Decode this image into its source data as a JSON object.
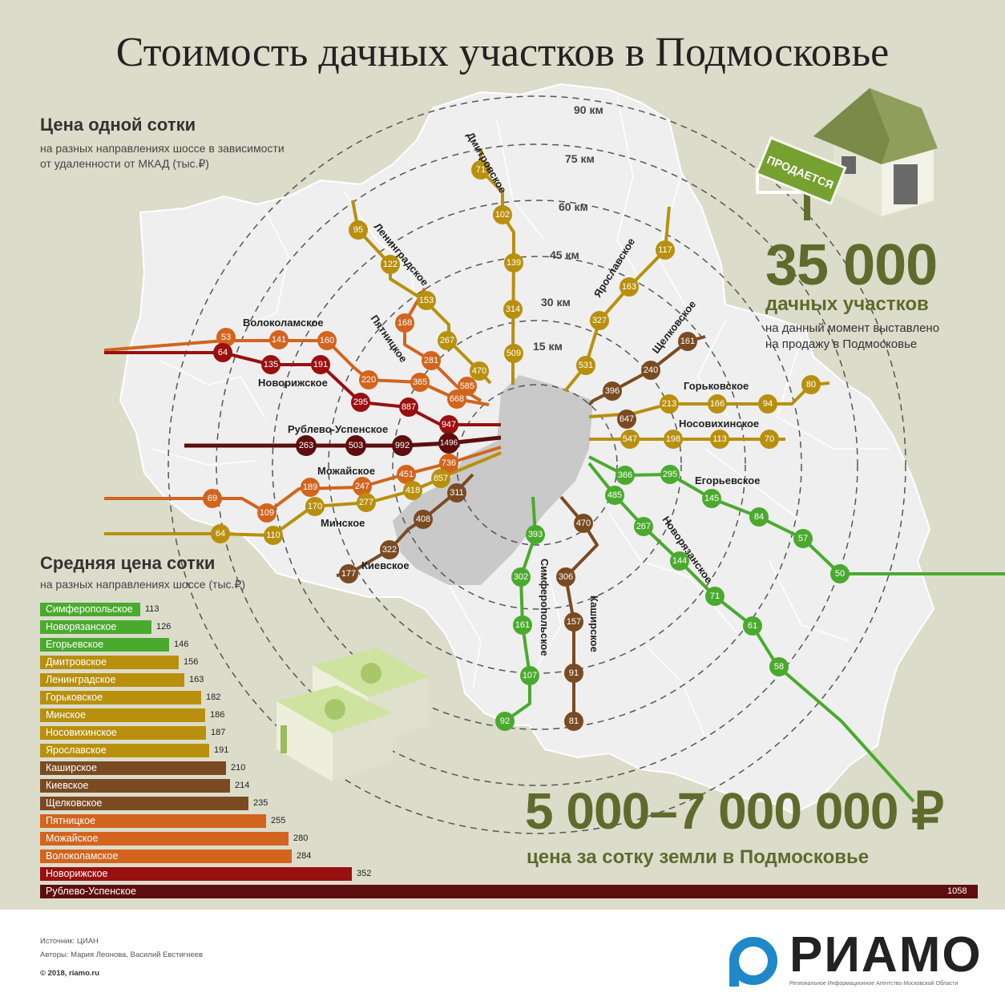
{
  "title": "Стоимость дачных участков в Подмосковье",
  "section1": {
    "heading": "Цена одной сотки",
    "subtitle_1": "на разных направлениях шоссе в зависимости",
    "subtitle_2": "от удаленности от МКАД (тыс.₽)"
  },
  "rings": [
    "15 км",
    "30 км",
    "45 км",
    "60 км",
    "75 км",
    "90 км"
  ],
  "sign_text": "ПРОДАЕТСЯ",
  "stat1": {
    "number": "35 000",
    "label": "дачных участков",
    "desc_1": "на данный момент выставлено",
    "desc_2": "на продажу в Подмосковье"
  },
  "stat2": {
    "number": "5 000–7 000 000 ₽",
    "label": "цена за сотку земли в Подмосковье"
  },
  "section2": {
    "heading": "Средняя цена сотки",
    "subtitle": "на разных направлениях шоссе (тыс.₽)"
  },
  "map_labels": {
    "dmitrovskoe": "Дмитровское",
    "leningradskoe": "Ленинградское",
    "yaroslavskoe": "Ярославское",
    "shchelkovskoe": "Щелковское",
    "volokolamskoe": "Волоколамское",
    "pyatnitskoe": "Пятницкое",
    "novorizhskoe": "Новорижское",
    "gorkovskoe": "Горьковское",
    "nosovikhinskoe": "Носовихинское",
    "rublevo": "Рублево-Успенское",
    "mozhayskoe": "Можайское",
    "egoryevskoe": "Егорьевское",
    "minskoe": "Минское",
    "novoryazanskoe": "Новорязанское",
    "kievskoe": "Киевское",
    "simferopolskoe": "Симферопольское",
    "kashirskoe": "Каширское"
  },
  "highways": [
    {
      "name": "Дмитровское",
      "color": "#b8900e",
      "values": [
        "71",
        "102",
        "139",
        "314",
        "509"
      ]
    },
    {
      "name": "Ленинградское",
      "color": "#b8900e",
      "values": [
        "95",
        "122",
        "153",
        "267",
        "470"
      ]
    },
    {
      "name": "Ярославское",
      "color": "#b8900e",
      "values": [
        "117",
        "163",
        "327",
        "531"
      ]
    },
    {
      "name": "Пятницкое",
      "color": "#d2641e",
      "values": [
        "168",
        "281",
        "585"
      ]
    },
    {
      "name": "Щелковское",
      "color": "#7a4b23",
      "values": [
        "161",
        "240",
        "396",
        "647"
      ]
    },
    {
      "name": "Волоколамское",
      "color": "#d2641e",
      "values": [
        "53",
        "141",
        "160",
        "220",
        "365",
        "668"
      ]
    },
    {
      "name": "Новорижское",
      "color": "#9a0f0f",
      "values": [
        "64",
        "135",
        "191",
        "295",
        "887",
        "947"
      ]
    },
    {
      "name": "Горьковское",
      "color": "#b8900e",
      "values": [
        "80",
        "94",
        "166",
        "213"
      ]
    },
    {
      "name": "Носовихинское",
      "color": "#b8900e",
      "values": [
        "70",
        "113",
        "198",
        "547"
      ]
    },
    {
      "name": "Рублево-Успенское",
      "color": "#5e0e0e",
      "values": [
        "263",
        "503",
        "992",
        "1496"
      ]
    },
    {
      "name": "Можайское",
      "color": "#d2641e",
      "values": [
        "69",
        "109",
        "189",
        "247",
        "451",
        "736"
      ]
    },
    {
      "name": "Минское",
      "color": "#b8900e",
      "values": [
        "64",
        "110",
        "170",
        "277",
        "418",
        "857"
      ]
    },
    {
      "name": "Киевское",
      "color": "#7a4b23",
      "values": [
        "177",
        "322",
        "408",
        "311"
      ]
    },
    {
      "name": "Егорьевское",
      "color": "#4aaa2e",
      "values": [
        "366",
        "295",
        "145",
        "84",
        "57",
        "50"
      ]
    },
    {
      "name": "Новорязанское",
      "color": "#4aaa2e",
      "values": [
        "485",
        "267",
        "144",
        "71",
        "61",
        "58"
      ]
    },
    {
      "name": "Симферопольское",
      "color": "#4aaa2e",
      "values": [
        "393",
        "302",
        "161",
        "107",
        "92"
      ]
    },
    {
      "name": "Каширское",
      "color": "#7a4b23",
      "values": [
        "470",
        "306",
        "157",
        "91",
        "81"
      ]
    }
  ],
  "chart_data": {
    "type": "bar",
    "categories": [
      "Симферопольское",
      "Новорязанское",
      "Егорьевское",
      "Дмитровское",
      "Ленинградское",
      "Горьковское",
      "Минское",
      "Носовихинское",
      "Ярославское",
      "Каширское",
      "Киевское",
      "Щелковское",
      "Пятницкое",
      "Можайское",
      "Волоколамское",
      "Новорижское",
      "Рублево-Успенское"
    ],
    "values": [
      113,
      126,
      146,
      156,
      163,
      182,
      186,
      187,
      191,
      210,
      214,
      235,
      255,
      280,
      284,
      352,
      1058
    ],
    "colors": [
      "#4aaa2e",
      "#4aaa2e",
      "#4aaa2e",
      "#b8900e",
      "#b8900e",
      "#b8900e",
      "#b8900e",
      "#b8900e",
      "#b8900e",
      "#7a4b23",
      "#7a4b23",
      "#7a4b23",
      "#d2641e",
      "#d2641e",
      "#d2641e",
      "#9a0f0f",
      "#5e0e0e"
    ],
    "title": "Средняя цена сотки"
  },
  "footer": {
    "source": "Источник: ЦИАН",
    "authors": "Авторы: Мария Леонова, Василий Евстигнеев",
    "copyright": "© 2018, riamo.ru",
    "logo": "РИАМО",
    "logo_sub": "Региональное Информационное Агентство Московской Области"
  }
}
